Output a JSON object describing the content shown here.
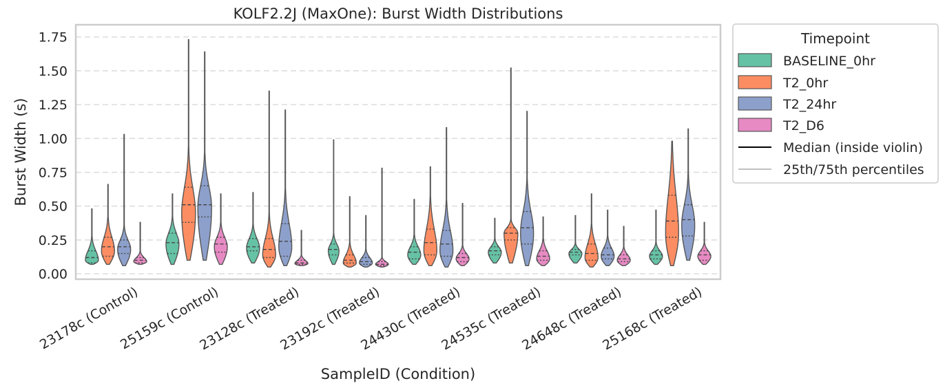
{
  "chart_data": {
    "type": "violin",
    "title": "KOLF2.2J (MaxOne): Burst Width Distributions",
    "xlabel": "SampleID (Condition)",
    "ylabel": "Burst Width (s)",
    "ylim": [
      -0.04,
      1.84
    ],
    "yticks": [
      0.0,
      0.25,
      0.5,
      0.75,
      1.0,
      1.25,
      1.5,
      1.75
    ],
    "ytick_labels": [
      "0.00",
      "0.25",
      "0.50",
      "0.75",
      "1.00",
      "1.25",
      "1.50",
      "1.75"
    ],
    "grid": true,
    "legend_placement": "outside-right",
    "legend": {
      "title": "Timepoint",
      "extra_entries": [
        "Median (inside violin)",
        "25th/75th percentiles"
      ]
    },
    "categories": [
      "23178c (Control)",
      "25159c (Control)",
      "23128c (Treated)",
      "23192c (Treated)",
      "24430c (Treated)",
      "24535c (Treated)",
      "24648c (Treated)",
      "25168c (Treated)"
    ],
    "series": [
      {
        "name": "BASELINE_0hr",
        "color": "#66c2a5",
        "violins": [
          {
            "min": 0.07,
            "q1": 0.08,
            "median": 0.12,
            "q3": 0.17,
            "max": 0.48,
            "mode": 0.1,
            "width": 0.85
          },
          {
            "min": 0.07,
            "q1": 0.15,
            "median": 0.23,
            "q3": 0.3,
            "max": 0.59,
            "mode": 0.22,
            "width": 0.85
          },
          {
            "min": 0.08,
            "q1": 0.17,
            "median": 0.2,
            "q3": 0.26,
            "max": 0.6,
            "mode": 0.19,
            "width": 0.85
          },
          {
            "min": 0.07,
            "q1": 0.14,
            "median": 0.18,
            "q3": 0.22,
            "max": 0.99,
            "mode": 0.17,
            "width": 0.7
          },
          {
            "min": 0.07,
            "q1": 0.11,
            "median": 0.16,
            "q3": 0.2,
            "max": 0.55,
            "mode": 0.14,
            "width": 0.85
          },
          {
            "min": 0.08,
            "q1": 0.14,
            "median": 0.17,
            "q3": 0.2,
            "max": 0.41,
            "mode": 0.16,
            "width": 0.85
          },
          {
            "min": 0.08,
            "q1": 0.14,
            "median": 0.16,
            "q3": 0.18,
            "max": 0.43,
            "mode": 0.15,
            "width": 0.85
          },
          {
            "min": 0.07,
            "q1": 0.11,
            "median": 0.14,
            "q3": 0.17,
            "max": 0.47,
            "mode": 0.13,
            "width": 0.85
          }
        ]
      },
      {
        "name": "T2_0hr",
        "color": "#fc8d62",
        "violins": [
          {
            "min": 0.07,
            "q1": 0.13,
            "median": 0.2,
            "q3": 0.27,
            "max": 0.66,
            "mode": 0.17,
            "width": 0.85
          },
          {
            "min": 0.1,
            "q1": 0.38,
            "median": 0.51,
            "q3": 0.64,
            "max": 1.73,
            "mode": 0.45,
            "width": 0.9
          },
          {
            "min": 0.05,
            "q1": 0.12,
            "median": 0.18,
            "q3": 0.26,
            "max": 1.35,
            "mode": 0.14,
            "width": 0.85
          },
          {
            "min": 0.05,
            "q1": 0.08,
            "median": 0.1,
            "q3": 0.14,
            "max": 0.57,
            "mode": 0.08,
            "width": 0.85
          },
          {
            "min": 0.06,
            "q1": 0.14,
            "median": 0.23,
            "q3": 0.33,
            "max": 0.79,
            "mode": 0.17,
            "width": 0.85
          },
          {
            "min": 0.08,
            "q1": 0.25,
            "median": 0.3,
            "q3": 0.34,
            "max": 1.52,
            "mode": 0.3,
            "width": 0.9
          },
          {
            "min": 0.05,
            "q1": 0.1,
            "median": 0.15,
            "q3": 0.22,
            "max": 0.59,
            "mode": 0.12,
            "width": 0.85
          },
          {
            "min": 0.06,
            "q1": 0.27,
            "median": 0.39,
            "q3": 0.58,
            "max": 0.98,
            "mode": 0.3,
            "width": 0.85
          }
        ]
      },
      {
        "name": "T2_24hr",
        "color": "#8da0cb",
        "violins": [
          {
            "min": 0.06,
            "q1": 0.15,
            "median": 0.2,
            "q3": 0.25,
            "max": 1.03,
            "mode": 0.18,
            "width": 0.85
          },
          {
            "min": 0.1,
            "q1": 0.42,
            "median": 0.51,
            "q3": 0.65,
            "max": 1.64,
            "mode": 0.49,
            "width": 0.9
          },
          {
            "min": 0.06,
            "q1": 0.13,
            "median": 0.24,
            "q3": 0.37,
            "max": 1.21,
            "mode": 0.2,
            "width": 0.85
          },
          {
            "min": 0.05,
            "q1": 0.07,
            "median": 0.09,
            "q3": 0.12,
            "max": 0.43,
            "mode": 0.08,
            "width": 0.85
          },
          {
            "min": 0.05,
            "q1": 0.13,
            "median": 0.22,
            "q3": 0.32,
            "max": 1.08,
            "mode": 0.17,
            "width": 0.85
          },
          {
            "min": 0.06,
            "q1": 0.22,
            "median": 0.34,
            "q3": 0.46,
            "max": 1.2,
            "mode": 0.3,
            "width": 0.85
          },
          {
            "min": 0.06,
            "q1": 0.11,
            "median": 0.14,
            "q3": 0.19,
            "max": 0.47,
            "mode": 0.13,
            "width": 0.85
          },
          {
            "min": 0.1,
            "q1": 0.28,
            "median": 0.4,
            "q3": 0.51,
            "max": 1.07,
            "mode": 0.36,
            "width": 0.85
          }
        ]
      },
      {
        "name": "T2_D6",
        "color": "#e78ac3",
        "violins": [
          {
            "min": 0.07,
            "q1": 0.08,
            "median": 0.1,
            "q3": 0.12,
            "max": 0.38,
            "mode": 0.09,
            "width": 0.85
          },
          {
            "min": 0.07,
            "q1": 0.16,
            "median": 0.22,
            "q3": 0.27,
            "max": 0.59,
            "mode": 0.2,
            "width": 0.85
          },
          {
            "min": 0.06,
            "q1": 0.07,
            "median": 0.08,
            "q3": 0.1,
            "max": 0.32,
            "mode": 0.075,
            "width": 0.85
          },
          {
            "min": 0.05,
            "q1": 0.06,
            "median": 0.07,
            "q3": 0.09,
            "max": 0.78,
            "mode": 0.07,
            "width": 0.85
          },
          {
            "min": 0.06,
            "q1": 0.09,
            "median": 0.12,
            "q3": 0.15,
            "max": 0.52,
            "mode": 0.11,
            "width": 0.85
          },
          {
            "min": 0.06,
            "q1": 0.1,
            "median": 0.13,
            "q3": 0.17,
            "max": 0.42,
            "mode": 0.11,
            "width": 0.85
          },
          {
            "min": 0.06,
            "q1": 0.09,
            "median": 0.11,
            "q3": 0.14,
            "max": 0.35,
            "mode": 0.1,
            "width": 0.85
          },
          {
            "min": 0.07,
            "q1": 0.1,
            "median": 0.14,
            "q3": 0.17,
            "max": 0.38,
            "mode": 0.13,
            "width": 0.85
          }
        ]
      }
    ]
  }
}
